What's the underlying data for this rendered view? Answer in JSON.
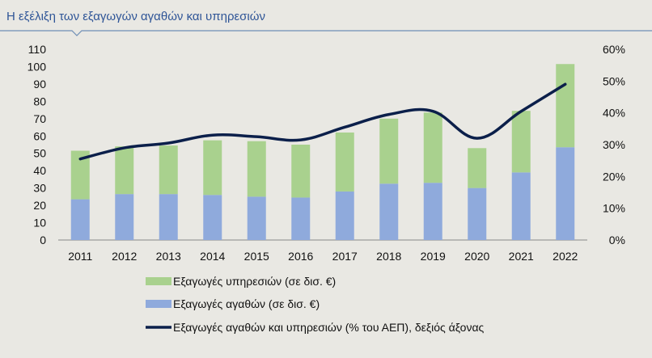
{
  "title": "Η εξέλιξη των εξαγωγών αγαθών και υπηρεσιών",
  "colors": {
    "services": "#a9d18e",
    "goods": "#8faadc",
    "line": "#0b1f4a",
    "title": "#2f5597",
    "rule": "#6f8fb6"
  },
  "chart_data": {
    "type": "bar",
    "stacked": true,
    "categories": [
      "2011",
      "2012",
      "2013",
      "2014",
      "2015",
      "2016",
      "2017",
      "2018",
      "2019",
      "2020",
      "2021",
      "2022"
    ],
    "series": [
      {
        "name": "Εξαγωγές αγαθών (σε δισ. €)",
        "axis": "left",
        "values": [
          23.5,
          26.5,
          26.5,
          26,
          25,
          24.5,
          28,
          32.5,
          33,
          30,
          39,
          53.5
        ]
      },
      {
        "name": "Εξαγωγές υπηρεσιών (σε δισ. €)",
        "axis": "left",
        "values": [
          28,
          27.5,
          28,
          31.5,
          32,
          30.5,
          34,
          37.5,
          40.5,
          23,
          35.5,
          48
        ]
      },
      {
        "name": "Εξαγωγές αγαθών και υπηρεσιών (% του ΑΕΠ), δεξιός άξονας",
        "type": "line",
        "axis": "right",
        "values": [
          25.5,
          29,
          30.5,
          33,
          32.5,
          31.5,
          35.5,
          39.5,
          40.5,
          32,
          40.5,
          49
        ]
      }
    ],
    "left_axis": {
      "min": 0,
      "max": 110,
      "step": 10,
      "ticks": [
        "0",
        "10",
        "20",
        "30",
        "40",
        "50",
        "60",
        "70",
        "80",
        "90",
        "100",
        "110"
      ]
    },
    "right_axis": {
      "min": 0,
      "max": 60,
      "step": 10,
      "ticks": [
        "0%",
        "10%",
        "20%",
        "30%",
        "40%",
        "50%",
        "60%"
      ]
    },
    "grid": false,
    "legend_position": "bottom"
  }
}
